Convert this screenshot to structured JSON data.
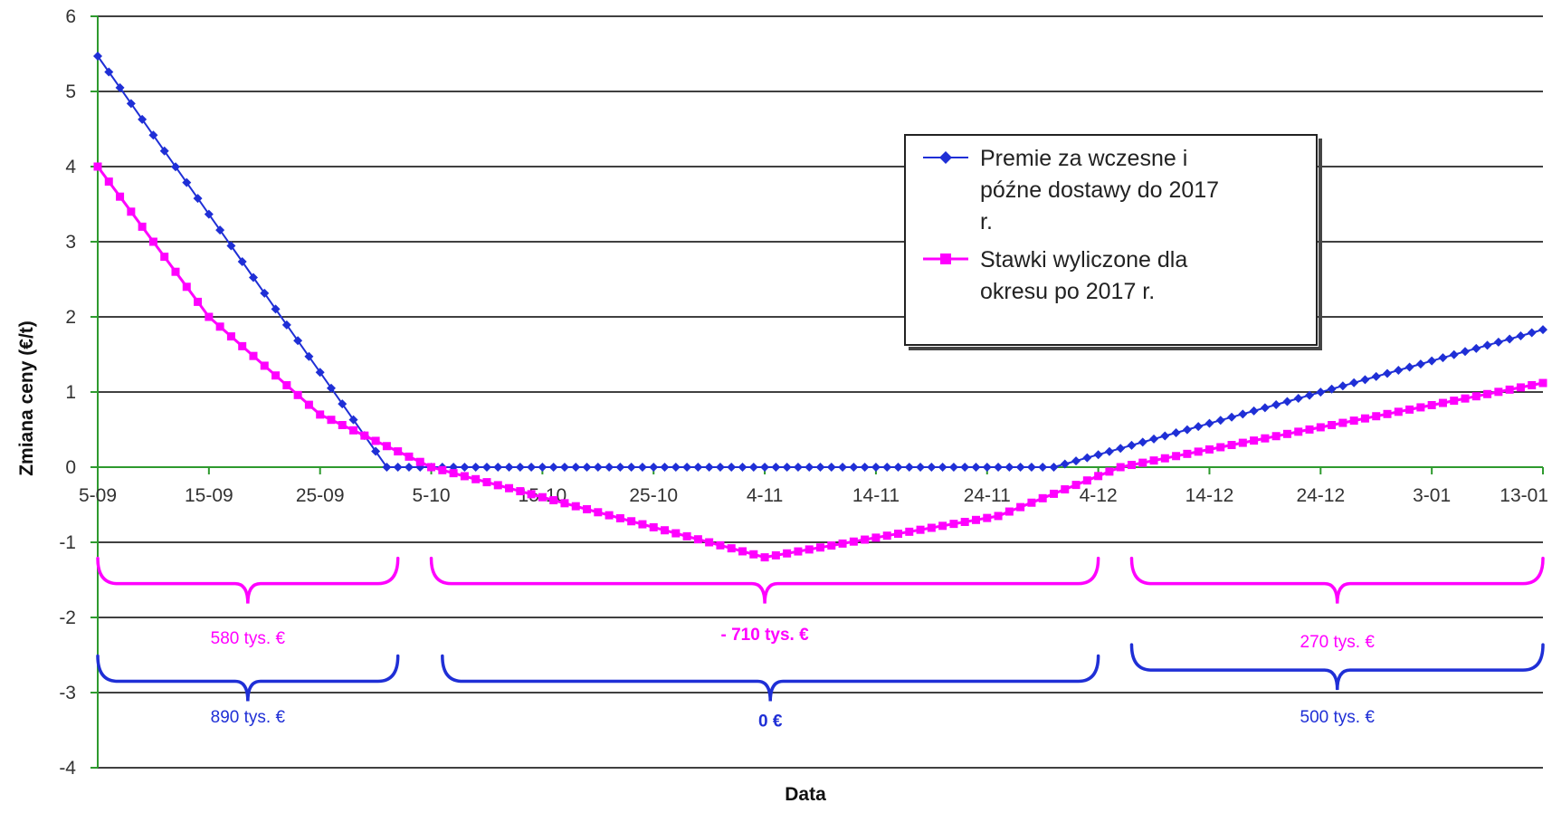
{
  "chart_data": {
    "type": "line",
    "xlabel": "Data",
    "ylabel": "Zmiana ceny (€/t)",
    "ylim": [
      -4,
      6
    ],
    "yticks": [
      "6",
      "5",
      "4",
      "3",
      "2",
      "1",
      "0",
      "-1",
      "-2",
      "-3",
      "-4"
    ],
    "xlim": [
      "2005-09-05",
      "2006-01-13"
    ],
    "xticks": [
      {
        "date": "2005-09-05",
        "label": "5-09"
      },
      {
        "date": "2005-09-15",
        "label": "15-09"
      },
      {
        "date": "2005-09-25",
        "label": "25-09"
      },
      {
        "date": "2005-10-05",
        "label": "5-10"
      },
      {
        "date": "2005-10-15",
        "label": "15-10"
      },
      {
        "date": "2005-10-25",
        "label": "25-10"
      },
      {
        "date": "2005-11-04",
        "label": "4-11"
      },
      {
        "date": "2005-11-14",
        "label": "14-11"
      },
      {
        "date": "2005-11-24",
        "label": "24-11"
      },
      {
        "date": "2005-12-04",
        "label": "4-12"
      },
      {
        "date": "2005-12-14",
        "label": "14-12"
      },
      {
        "date": "2005-12-24",
        "label": "24-12"
      },
      {
        "date": "2006-01-03",
        "label": "3-01"
      },
      {
        "date": "2006-01-13",
        "label": "13-01"
      }
    ],
    "grid": true,
    "legend_position": "upper-right",
    "series": [
      {
        "name": "Premie za wczesne i późne dostawy do 2017 r.",
        "color": "#1f2fd6",
        "marker": "diamond",
        "points": [
          {
            "x": "2005-09-05",
            "y": 5.47
          },
          {
            "x": "2005-10-01",
            "y": 0
          },
          {
            "x": "2005-11-30",
            "y": 0
          },
          {
            "x": "2006-01-13",
            "y": 1.83
          }
        ]
      },
      {
        "name": "Stawki wyliczone dla okresu po 2017 r.",
        "color": "#ff00ff",
        "marker": "square",
        "points": [
          {
            "x": "2005-09-05",
            "y": 4.0
          },
          {
            "x": "2005-09-15",
            "y": 2.0
          },
          {
            "x": "2005-09-25",
            "y": 0.7
          },
          {
            "x": "2005-10-05",
            "y": 0
          },
          {
            "x": "2005-11-04",
            "y": -1.2
          },
          {
            "x": "2005-11-25",
            "y": -0.65
          },
          {
            "x": "2005-12-06",
            "y": 0
          },
          {
            "x": "2006-01-13",
            "y": 1.12
          }
        ]
      }
    ],
    "annotations": [
      {
        "text": "580 tys. €",
        "color": "#ff00ff",
        "bold": false,
        "from": "2005-09-05",
        "to": "2005-10-02",
        "brace_y": -1.55,
        "label_y": -2.35
      },
      {
        "text": "- 710 tys. €",
        "color": "#ff00ff",
        "bold": true,
        "from": "2005-10-05",
        "to": "2005-12-04",
        "brace_y": -1.55,
        "label_y": -2.3
      },
      {
        "text": "270 tys. €",
        "color": "#ff00ff",
        "bold": false,
        "from": "2005-12-07",
        "to": "2006-01-13",
        "brace_y": -1.55,
        "label_y": -2.4
      },
      {
        "text": "890 tys. €",
        "color": "#1f2fd6",
        "bold": false,
        "from": "2005-09-05",
        "to": "2005-10-02",
        "brace_y": -2.85,
        "label_y": -3.4
      },
      {
        "text": "0 €",
        "color": "#1f2fd6",
        "bold": true,
        "from": "2005-10-06",
        "to": "2005-12-04",
        "brace_y": -2.85,
        "label_y": -3.45
      },
      {
        "text": "500 tys. €",
        "color": "#1f2fd6",
        "bold": false,
        "from": "2005-12-07",
        "to": "2006-01-13",
        "brace_y": -2.7,
        "label_y": -3.4
      }
    ]
  }
}
